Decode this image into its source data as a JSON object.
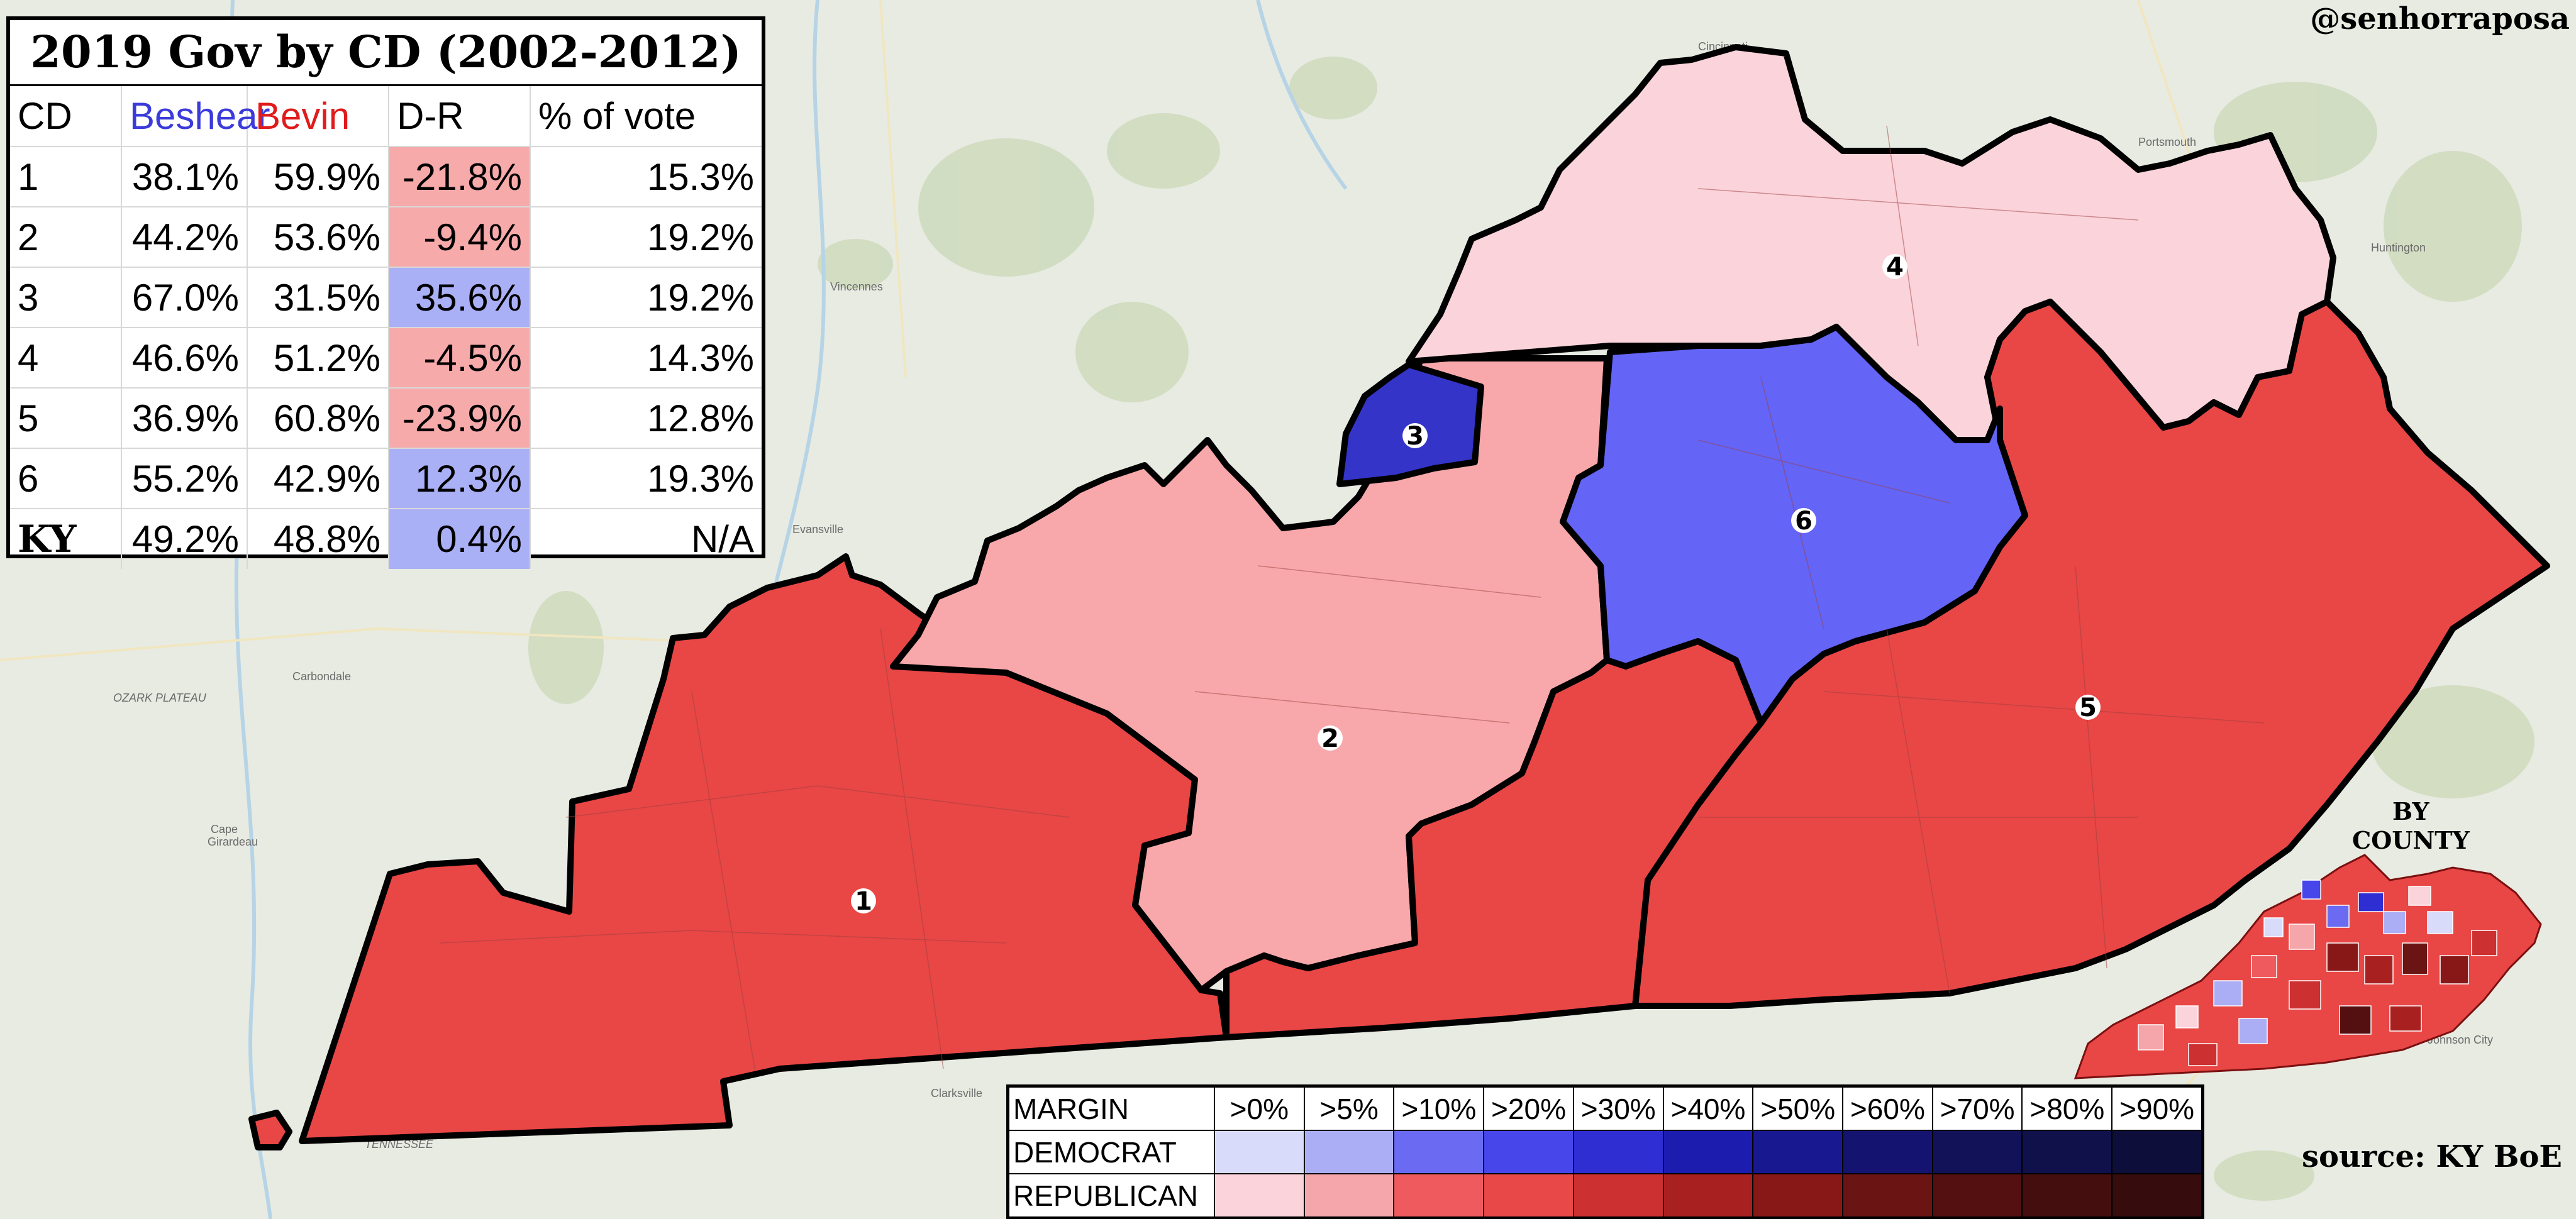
{
  "title": "2019 Gov by CD (2002-2012)",
  "author": "@senhorraposa",
  "source": "source: KY BoE",
  "inset_label_line1": "BY",
  "inset_label_line2": "COUNTY",
  "table": {
    "columns": [
      "CD",
      "Beshear",
      "Bevin",
      "D-R",
      "% of vote"
    ],
    "rows": [
      {
        "cd": "1",
        "beshear": "38.1%",
        "bevin": "59.9%",
        "dr": "-21.8%",
        "share": "15.3%"
      },
      {
        "cd": "2",
        "beshear": "44.2%",
        "bevin": "53.6%",
        "dr": "-9.4%",
        "share": "19.2%"
      },
      {
        "cd": "3",
        "beshear": "67.0%",
        "bevin": "31.5%",
        "dr": "35.6%",
        "share": "19.2%"
      },
      {
        "cd": "4",
        "beshear": "46.6%",
        "bevin": "51.2%",
        "dr": "-4.5%",
        "share": "14.3%"
      },
      {
        "cd": "5",
        "beshear": "36.9%",
        "bevin": "60.8%",
        "dr": "-23.9%",
        "share": "12.8%"
      },
      {
        "cd": "6",
        "beshear": "55.2%",
        "bevin": "42.9%",
        "dr": "12.3%",
        "share": "19.3%"
      },
      {
        "cd": "KY",
        "beshear": "49.2%",
        "bevin": "48.8%",
        "dr": "0.4%",
        "share": "N/A"
      }
    ]
  },
  "map": {
    "district_labels": [
      "1",
      "2",
      "3",
      "4",
      "5",
      "6"
    ],
    "district_colors": {
      "1": "#e94646",
      "2": "#f8a8aa",
      "3": "#3434c8",
      "4": "#fbd3da",
      "5": "#e94646",
      "6": "#6464f6"
    },
    "place_names": [
      "Evansville",
      "Vincennes",
      "Carbondale",
      "Cape Girardeau",
      "Cincinnati",
      "Portsmouth",
      "Huntington",
      "Clarksville",
      "OZARK PLATEAU",
      "TENNESSEE",
      "Johnson City"
    ]
  },
  "legend": {
    "margin_label": "MARGIN",
    "bins": [
      ">0%",
      ">5%",
      ">10%",
      ">20%",
      ">30%",
      ">40%",
      ">50%",
      ">60%",
      ">70%",
      ">80%",
      ">90%"
    ],
    "democrat_label": "DEMOCRAT",
    "republican_label": "REPUBLICAN",
    "democrat_colors": [
      "#d9dbfb",
      "#abaef5",
      "#6a6af2",
      "#4646ea",
      "#2e2ed2",
      "#1c1cae",
      "#181890",
      "#141470",
      "#121258",
      "#10104a",
      "#0e0e3a"
    ],
    "republican_colors": [
      "#fbd3da",
      "#f5a6aa",
      "#ee5a5e",
      "#e84848",
      "#cc3030",
      "#a82020",
      "#881818",
      "#6a1414",
      "#541010",
      "#440e0e",
      "#360c0c"
    ]
  }
}
